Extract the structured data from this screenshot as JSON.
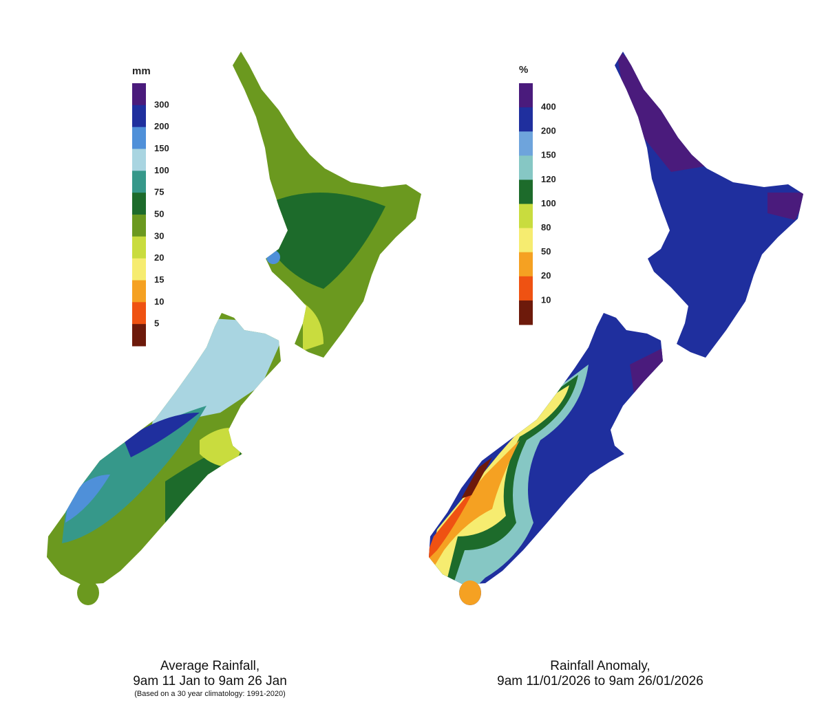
{
  "maps": [
    {
      "legend": {
        "unit": "mm",
        "labels": [
          "300",
          "200",
          "150",
          "100",
          "75",
          "50",
          "30",
          "20",
          "15",
          "10",
          "5"
        ],
        "colors": [
          "#4a1b7c",
          "#1f2f9e",
          "#4f90d9",
          "#a9d5e1",
          "#36988a",
          "#1d6b2b",
          "#6b991f",
          "#c9dc3e",
          "#f6ec70",
          "#f5a122",
          "#ef5212",
          "#6d1a0b"
        ]
      },
      "caption": {
        "title": "Average Rainfall,",
        "period": "9am 11 Jan to 9am 26 Jan",
        "note": "(Based on a 30 year climatology: 1991-2020)"
      }
    },
    {
      "legend": {
        "unit": "%",
        "labels": [
          "400",
          "200",
          "150",
          "120",
          "100",
          "80",
          "50",
          "20",
          "10"
        ],
        "colors": [
          "#4a1b7c",
          "#1f2f9e",
          "#6ea4dc",
          "#86c7c4",
          "#1d6b2b",
          "#c9dc3e",
          "#f6ec70",
          "#f5a122",
          "#ef5212",
          "#6d1a0b"
        ]
      },
      "caption": {
        "title": "Rainfall Anomaly,",
        "period": "9am 11/01/2026 to 9am 26/01/2026"
      }
    }
  ]
}
